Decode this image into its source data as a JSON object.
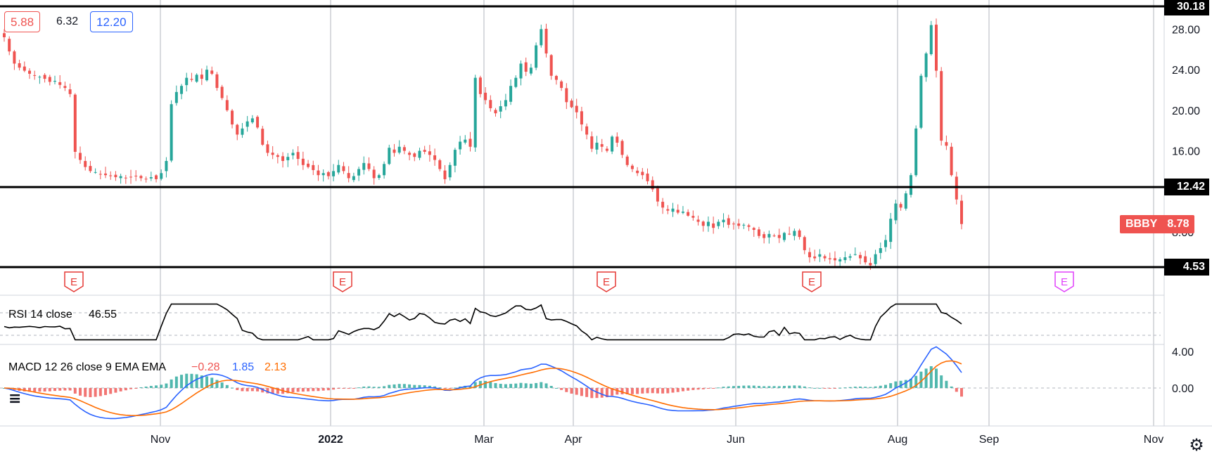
{
  "header": {
    "ohlc_open": "5.88",
    "ohlc_mid": "6.32",
    "ohlc_close": "12.20"
  },
  "price_axis": {
    "ticks": [
      "28.00",
      "24.00",
      "20.00",
      "16.00",
      "8.00"
    ]
  },
  "horizontal_levels": [
    "30.18",
    "12.42",
    "4.53"
  ],
  "last_price": {
    "symbol": "BBBY",
    "value": "8.78"
  },
  "earnings_markers": [
    {
      "label": "E",
      "color": "#e53935"
    },
    {
      "label": "E",
      "color": "#e53935"
    },
    {
      "label": "E",
      "color": "#e53935"
    },
    {
      "label": "E",
      "color": "#e53935"
    },
    {
      "label": "E",
      "color": "#e040fb"
    }
  ],
  "rsi": {
    "label": "RSI 14 close",
    "value": "46.55"
  },
  "macd": {
    "label": "MACD 12 26 close 9 EMA EMA",
    "hist_value": "−0.28",
    "macd_value": "1.85",
    "signal_value": "2.13",
    "axis_ticks": [
      "4.00",
      "0.00"
    ]
  },
  "time_axis": [
    "Nov",
    "2022",
    "Mar",
    "Apr",
    "Jun",
    "Aug",
    "Sep",
    "Nov"
  ],
  "colors": {
    "up": "#26a69a",
    "down": "#ef5350",
    "macd_line": "#2962ff",
    "signal_line": "#ff6d00",
    "rsi_line": "#000000",
    "grid": "#b2b5be"
  },
  "chart_data": [
    {
      "type": "candlestick",
      "series_name": "BBBY",
      "y_range": [
        4.53,
        30.18
      ],
      "x_labels": [
        "Nov",
        "2022",
        "Mar",
        "Apr",
        "Jun",
        "Aug",
        "Sep",
        "Nov"
      ],
      "levels": [
        30.18,
        12.42,
        4.53
      ],
      "last_value": 8.78,
      "closes": [
        27.2,
        25.8,
        24.6,
        24.2,
        23.9,
        23.6,
        23.4,
        23.3,
        23.1,
        22.8,
        22.9,
        22.5,
        22.2,
        21.6,
        15.9,
        15.1,
        14.4,
        14.0,
        13.9,
        13.7,
        13.6,
        13.5,
        13.4,
        13.5,
        13.3,
        13.4,
        13.5,
        13.3,
        13.2,
        13.4,
        13.2,
        13.8,
        15.0,
        20.6,
        21.8,
        22.4,
        23.2,
        23.0,
        23.5,
        23.1,
        24.0,
        23.6,
        22.2,
        21.2,
        20.0,
        18.6,
        17.6,
        18.2,
        18.9,
        19.2,
        18.3,
        16.6,
        15.8,
        15.6,
        15.4,
        15.0,
        15.4,
        15.8,
        15.2,
        14.6,
        14.4,
        14.1,
        13.6,
        13.8,
        13.5,
        14.0,
        14.6,
        14.0,
        13.3,
        13.5,
        14.2,
        14.8,
        14.2,
        13.3,
        13.6,
        14.7,
        16.3,
        15.8,
        16.4,
        16.0,
        15.6,
        15.4,
        16.0,
        15.9,
        15.6,
        15.1,
        14.2,
        13.2,
        14.6,
        16.1,
        16.9,
        17.1,
        16.4,
        23.2,
        21.6,
        21.0,
        20.2,
        19.7,
        20.4,
        21.0,
        22.4,
        23.2,
        24.6,
        23.8,
        24.2,
        26.4,
        28.0,
        25.6,
        23.4,
        23.0,
        22.2,
        20.8,
        20.3,
        19.8,
        18.6,
        17.6,
        16.2,
        16.8,
        16.4,
        16.0,
        17.4,
        16.8,
        15.6,
        14.6,
        14.2,
        13.8,
        13.6,
        13.0,
        12.2,
        11.0,
        10.4,
        10.1,
        10.3,
        9.9,
        10.0,
        9.6,
        9.4,
        9.0,
        8.6,
        9.0,
        8.4,
        9.0,
        9.2,
        8.7,
        8.8,
        8.6,
        8.7,
        8.5,
        8.2,
        7.6,
        7.4,
        7.8,
        7.6,
        7.4,
        7.9,
        7.8,
        8.1,
        7.5,
        6.2,
        5.5,
        5.4,
        5.8,
        5.4,
        5.3,
        5.2,
        5.3,
        5.5,
        5.6,
        5.8,
        5.4,
        5.0,
        4.7,
        5.8,
        6.4,
        7.2,
        9.3,
        10.8,
        10.4,
        11.8,
        13.6,
        18.2,
        23.4,
        25.6,
        28.4,
        23.9,
        17.0,
        16.5,
        13.6,
        11.2,
        8.78
      ],
      "rsi": {
        "value": 46.55,
        "guides": [
          70,
          30
        ]
      },
      "macd": {
        "hist": -0.28,
        "macd": 1.85,
        "signal": 2.13,
        "y_ticks": [
          4.0,
          0.0
        ]
      }
    }
  ]
}
